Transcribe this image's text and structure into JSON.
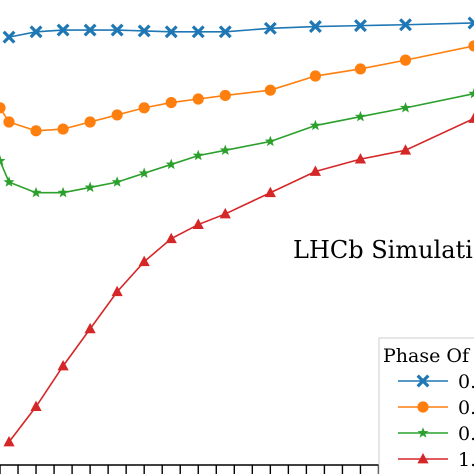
{
  "chart_data": {
    "type": "line",
    "annotation": "LHCb Simulati",
    "legend": {
      "title": "Phase Of",
      "placement": "lower-right"
    },
    "xlim": [
      0,
      26.3
    ],
    "ylim": [
      0,
      26.3
    ],
    "grid": false,
    "series": [
      {
        "name": "0.",
        "color": "#1f77b4",
        "marker": "x",
        "x": [
          0.5,
          2,
          3.5,
          5,
          6.5,
          8,
          9.5,
          11,
          12.5,
          15,
          17.5,
          20,
          22.5,
          26.3
        ],
        "y": [
          24.2,
          24.5,
          24.6,
          24.6,
          24.6,
          24.55,
          24.5,
          24.5,
          24.5,
          24.7,
          24.8,
          24.85,
          24.9,
          25.0
        ]
      },
      {
        "name": "0.",
        "color": "#ff7f0e",
        "marker": "o",
        "x": [
          0,
          0.5,
          2,
          3.5,
          5,
          6.5,
          8,
          9.5,
          11,
          12.5,
          15,
          17.5,
          20,
          22.5,
          26.3
        ],
        "y": [
          20.2,
          19.4,
          18.9,
          19.0,
          19.4,
          19.8,
          20.2,
          20.5,
          20.7,
          20.9,
          21.2,
          22.0,
          22.4,
          22.9,
          23.7
        ]
      },
      {
        "name": "0.",
        "color": "#2ca02c",
        "marker": "*",
        "x": [
          0,
          0.5,
          2,
          3.5,
          5,
          6.5,
          8,
          9.5,
          11,
          12.5,
          15,
          17.5,
          20,
          22.5,
          26.3
        ],
        "y": [
          17.2,
          16.0,
          15.4,
          15.4,
          15.7,
          16.0,
          16.5,
          17.0,
          17.5,
          17.8,
          18.3,
          19.2,
          19.7,
          20.2,
          21.0
        ]
      },
      {
        "name": "1.",
        "color": "#d62728",
        "marker": "^",
        "x": [
          0.5,
          2,
          3.5,
          5,
          6.5,
          8,
          9.5,
          11,
          12.5,
          15,
          17.5,
          20,
          22.5,
          26.3
        ],
        "y": [
          1.3,
          3.3,
          5.6,
          7.7,
          9.8,
          11.5,
          12.8,
          13.6,
          14.2,
          15.4,
          16.6,
          17.3,
          17.8,
          19.6
        ]
      }
    ]
  }
}
